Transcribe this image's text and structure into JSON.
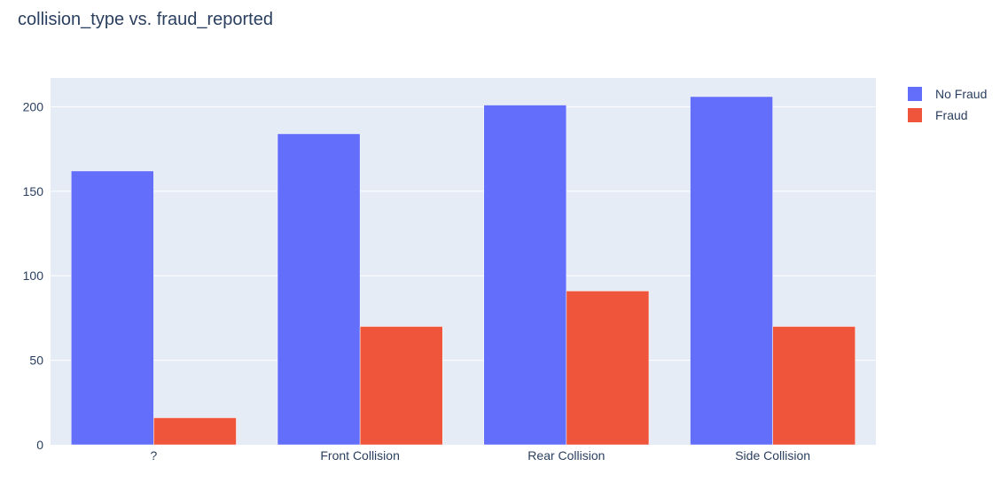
{
  "chart_data": {
    "type": "bar",
    "title": "collision_type vs. fraud_reported",
    "xlabel": "",
    "ylabel": "",
    "categories": [
      "?",
      "Front Collision",
      "Rear Collision",
      "Side Collision"
    ],
    "series": [
      {
        "name": "No Fraud",
        "values": [
          162,
          184,
          201,
          206
        ],
        "color": "#636efa"
      },
      {
        "name": "Fraud",
        "values": [
          16,
          70,
          91,
          70
        ],
        "color": "#ef553b"
      }
    ],
    "ylim": [
      0,
      217
    ],
    "yticks": [
      0,
      50,
      100,
      150,
      200
    ],
    "grid": true,
    "legend": "top-right",
    "plot_background": "#e5ecf6"
  }
}
